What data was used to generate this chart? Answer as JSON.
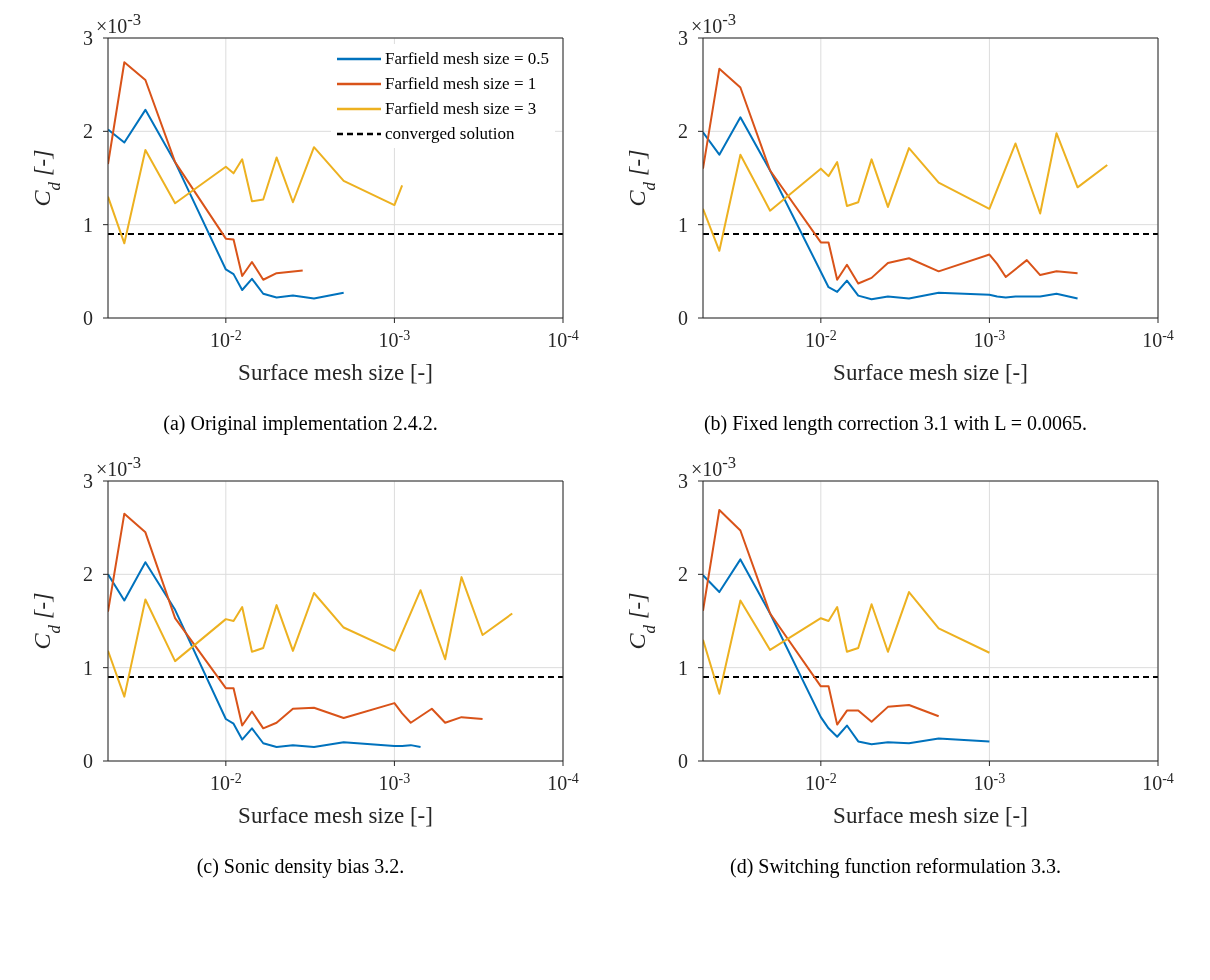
{
  "chart_data": [
    {
      "type": "line",
      "title": "(a) Original implementation 2.4.2.",
      "xlabel": "Surface mesh size [-]",
      "ylabel": "C$_{d}$ [-]",
      "annotations": [
        "×10$^{-3}$"
      ],
      "log": "x",
      "grid": true,
      "legend": "top right",
      "xlim": [
        0.05,
        0.0001
      ],
      "xticks": [
        {
          "value": 0.01,
          "label": "10$^{-2}$"
        },
        {
          "value": 0.001,
          "label": "10$^{-3}$"
        },
        {
          "value": 0.0001,
          "label": "10$^{-4}$"
        }
      ],
      "ylim": [
        0,
        3
      ],
      "yticks": [
        0,
        1,
        2,
        3
      ],
      "ref_lines": [
        {
          "axis": "y",
          "value": 0.9,
          "label": "converged solution",
          "color": "#000000",
          "line_style": "dashed"
        }
      ],
      "series": [
        {
          "name": "Farfield mesh size = 0.5",
          "color": "#0072bd",
          "x": [
            0.05,
            0.04,
            0.03,
            0.02,
            0.01,
            0.009,
            0.008,
            0.007,
            0.006,
            0.005,
            0.004,
            0.003,
            0.002
          ],
          "values": [
            2.02,
            1.88,
            2.23,
            1.67,
            0.52,
            0.47,
            0.3,
            0.42,
            0.26,
            0.22,
            0.24,
            0.21,
            0.27
          ]
        },
        {
          "name": "Farfield mesh size = 1",
          "color": "#d95319",
          "x": [
            0.05,
            0.04,
            0.03,
            0.02,
            0.01,
            0.009,
            0.008,
            0.007,
            0.006,
            0.005,
            0.0035
          ],
          "values": [
            1.65,
            2.74,
            2.55,
            1.67,
            0.85,
            0.84,
            0.45,
            0.6,
            0.41,
            0.48,
            0.51
          ]
        },
        {
          "name": "Farfield mesh size = 3",
          "color": "#edb120",
          "x": [
            0.05,
            0.04,
            0.03,
            0.02,
            0.01,
            0.009,
            0.008,
            0.007,
            0.006,
            0.005,
            0.004,
            0.003,
            0.002,
            0.001,
            0.0009
          ],
          "values": [
            1.3,
            0.8,
            1.8,
            1.23,
            1.62,
            1.55,
            1.7,
            1.25,
            1.27,
            1.72,
            1.24,
            1.83,
            1.47,
            1.21,
            1.42
          ]
        }
      ]
    },
    {
      "type": "line",
      "title": "(b) Fixed length correction 3.1 with L = 0.0065.",
      "xlabel": "Surface mesh size [-]",
      "ylabel": "C$_{d}$ [-]",
      "annotations": [
        "×10$^{-3}$"
      ],
      "log": "x",
      "grid": true,
      "xlim": [
        0.05,
        0.0001
      ],
      "xticks": [
        {
          "value": 0.01,
          "label": "10$^{-2}$"
        },
        {
          "value": 0.001,
          "label": "10$^{-3}$"
        },
        {
          "value": 0.0001,
          "label": "10$^{-4}$"
        }
      ],
      "ylim": [
        0,
        3
      ],
      "yticks": [
        0,
        1,
        2,
        3
      ],
      "ref_lines": [
        {
          "axis": "y",
          "value": 0.9,
          "color": "#000000",
          "line_style": "dashed"
        }
      ],
      "series": [
        {
          "color": "#0072bd",
          "x": [
            0.05,
            0.04,
            0.03,
            0.02,
            0.009,
            0.008,
            0.007,
            0.006,
            0.005,
            0.004,
            0.003,
            0.002,
            0.001,
            0.0009,
            0.0008,
            0.0007,
            0.0006,
            0.0005,
            0.0004,
            0.0003
          ],
          "values": [
            1.99,
            1.75,
            2.15,
            1.58,
            0.33,
            0.28,
            0.4,
            0.24,
            0.2,
            0.23,
            0.21,
            0.27,
            0.25,
            0.23,
            0.22,
            0.23,
            0.23,
            0.23,
            0.26,
            0.21
          ]
        },
        {
          "color": "#d95319",
          "x": [
            0.05,
            0.04,
            0.03,
            0.02,
            0.01,
            0.009,
            0.008,
            0.007,
            0.006,
            0.005,
            0.004,
            0.003,
            0.002,
            0.001,
            0.0009,
            0.0008,
            0.0006,
            0.0005,
            0.0004,
            0.0003
          ],
          "values": [
            1.6,
            2.67,
            2.47,
            1.58,
            0.81,
            0.81,
            0.41,
            0.57,
            0.37,
            0.43,
            0.59,
            0.64,
            0.5,
            0.68,
            0.58,
            0.44,
            0.62,
            0.46,
            0.5,
            0.48
          ]
        },
        {
          "color": "#edb120",
          "x": [
            0.05,
            0.04,
            0.03,
            0.02,
            0.01,
            0.009,
            0.008,
            0.007,
            0.006,
            0.005,
            0.004,
            0.003,
            0.002,
            0.001,
            0.0007,
            0.0005,
            0.0004,
            0.0003,
            0.0002
          ],
          "values": [
            1.17,
            0.72,
            1.75,
            1.15,
            1.6,
            1.52,
            1.67,
            1.2,
            1.24,
            1.7,
            1.19,
            1.82,
            1.45,
            1.17,
            1.87,
            1.12,
            1.98,
            1.4,
            1.64
          ]
        }
      ]
    },
    {
      "type": "line",
      "title": "(c) Sonic density bias 3.2.",
      "xlabel": "Surface mesh size [-]",
      "ylabel": "C$_{d}$ [-]",
      "annotations": [
        "×10$^{-3}$"
      ],
      "log": "x",
      "grid": true,
      "xlim": [
        0.05,
        0.0001
      ],
      "xticks": [
        {
          "value": 0.01,
          "label": "10$^{-2}$"
        },
        {
          "value": 0.001,
          "label": "10$^{-3}$"
        },
        {
          "value": 0.0001,
          "label": "10$^{-4}$"
        }
      ],
      "ylim": [
        0,
        3
      ],
      "yticks": [
        0,
        1,
        2,
        3
      ],
      "ref_lines": [
        {
          "axis": "y",
          "value": 0.9,
          "color": "#000000",
          "line_style": "dashed"
        }
      ],
      "series": [
        {
          "color": "#0072bd",
          "x": [
            0.05,
            0.04,
            0.03,
            0.02,
            0.01,
            0.009,
            0.008,
            0.007,
            0.006,
            0.005,
            0.004,
            0.003,
            0.002,
            0.001,
            0.0009,
            0.0008,
            0.0007
          ],
          "values": [
            2.0,
            1.72,
            2.13,
            1.62,
            0.45,
            0.4,
            0.23,
            0.35,
            0.19,
            0.15,
            0.17,
            0.15,
            0.2,
            0.16,
            0.16,
            0.17,
            0.15
          ]
        },
        {
          "color": "#d95319",
          "x": [
            0.05,
            0.04,
            0.03,
            0.02,
            0.01,
            0.009,
            0.008,
            0.007,
            0.006,
            0.005,
            0.004,
            0.003,
            0.002,
            0.001,
            0.0009,
            0.0008,
            0.0006,
            0.0005,
            0.0004,
            0.0003
          ],
          "values": [
            1.6,
            2.65,
            2.45,
            1.53,
            0.78,
            0.78,
            0.38,
            0.53,
            0.35,
            0.41,
            0.56,
            0.57,
            0.46,
            0.62,
            0.51,
            0.41,
            0.56,
            0.41,
            0.47,
            0.45
          ]
        },
        {
          "color": "#edb120",
          "x": [
            0.05,
            0.04,
            0.03,
            0.02,
            0.01,
            0.009,
            0.008,
            0.007,
            0.006,
            0.005,
            0.004,
            0.003,
            0.002,
            0.001,
            0.0007,
            0.0005,
            0.0004,
            0.0003,
            0.0002
          ],
          "values": [
            1.18,
            0.69,
            1.73,
            1.07,
            1.52,
            1.5,
            1.65,
            1.17,
            1.21,
            1.67,
            1.18,
            1.8,
            1.43,
            1.18,
            1.83,
            1.09,
            1.97,
            1.35,
            1.58
          ]
        }
      ]
    },
    {
      "type": "line",
      "title": "(d) Switching function reformulation 3.3.",
      "xlabel": "Surface mesh size [-]",
      "ylabel": "C$_{d}$ [-]",
      "annotations": [
        "×10$^{-3}$"
      ],
      "log": "x",
      "grid": true,
      "xlim": [
        0.05,
        0.0001
      ],
      "xticks": [
        {
          "value": 0.01,
          "label": "10$^{-2}$"
        },
        {
          "value": 0.001,
          "label": "10$^{-3}$"
        },
        {
          "value": 0.0001,
          "label": "10$^{-4}$"
        }
      ],
      "ylim": [
        0,
        3
      ],
      "yticks": [
        0,
        1,
        2,
        3
      ],
      "ref_lines": [
        {
          "axis": "y",
          "value": 0.9,
          "color": "#000000",
          "line_style": "dashed"
        }
      ],
      "series": [
        {
          "color": "#0072bd",
          "x": [
            0.05,
            0.04,
            0.03,
            0.02,
            0.01,
            0.009,
            0.008,
            0.007,
            0.006,
            0.005,
            0.004,
            0.003,
            0.002,
            0.001
          ],
          "values": [
            1.99,
            1.81,
            2.16,
            1.58,
            0.47,
            0.35,
            0.26,
            0.38,
            0.21,
            0.18,
            0.2,
            0.19,
            0.24,
            0.21
          ]
        },
        {
          "color": "#d95319",
          "x": [
            0.05,
            0.04,
            0.03,
            0.02,
            0.01,
            0.009,
            0.008,
            0.007,
            0.006,
            0.005,
            0.004,
            0.003,
            0.002
          ],
          "values": [
            1.61,
            2.69,
            2.47,
            1.58,
            0.8,
            0.8,
            0.39,
            0.54,
            0.54,
            0.42,
            0.58,
            0.6,
            0.48
          ]
        },
        {
          "color": "#edb120",
          "x": [
            0.05,
            0.04,
            0.03,
            0.02,
            0.01,
            0.009,
            0.008,
            0.007,
            0.006,
            0.005,
            0.004,
            0.003,
            0.002,
            0.001
          ],
          "values": [
            1.3,
            0.72,
            1.72,
            1.19,
            1.53,
            1.5,
            1.65,
            1.17,
            1.21,
            1.68,
            1.17,
            1.81,
            1.42,
            1.16
          ]
        }
      ]
    }
  ]
}
